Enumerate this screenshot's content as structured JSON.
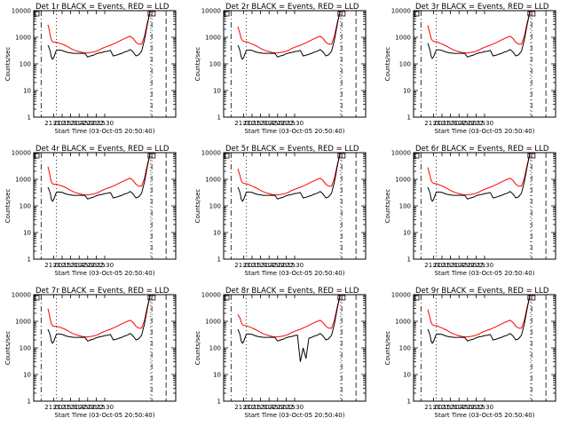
{
  "chart_data": {
    "type": "line",
    "scale": "log",
    "xlabel": "Start Time (03-Oct-05 20:50:40)",
    "ylabel": "Counts/sec",
    "ylim": [
      1,
      10000
    ],
    "xlim_minutes": [
      -25,
      225
    ],
    "x_ticks": [
      "21:00",
      "21:15",
      "21:30",
      "21:45",
      "22:00",
      "22:15",
      "22:30"
    ],
    "y_ticks": [
      "1",
      "10",
      "100",
      "1000",
      "10000"
    ],
    "colors": {
      "events": "#000000",
      "lld": "#ff0000",
      "axes": "#000000",
      "background": "#ffffff"
    },
    "legend_note": "BLACK = Events, RED = LLD",
    "x_minutes": [
      0,
      2,
      4,
      6,
      8,
      10,
      15,
      20,
      25,
      30,
      35,
      40,
      45,
      50,
      55,
      60,
      65,
      70,
      75,
      80,
      85,
      90,
      95,
      100,
      105,
      110,
      115,
      120,
      125,
      130,
      135,
      140,
      145,
      150,
      155,
      160,
      165,
      170,
      175,
      180,
      185,
      190,
      195,
      200,
      205,
      210,
      215,
      220
    ],
    "panels": [
      {
        "title": "Det 1r BLACK = Events, RED = LLD",
        "events": [
          500,
          400,
          300,
          180,
          150,
          170,
          330,
          330,
          320,
          290,
          270,
          260,
          250,
          250,
          250,
          250,
          250,
          180,
          200,
          210,
          240,
          260,
          270,
          290,
          300,
          320,
          200,
          210,
          230,
          250,
          280,
          300,
          350,
          280,
          200,
          220,
          300,
          800,
          3000,
          10000,
          10000,
          10000,
          10000,
          10000,
          10000,
          10000,
          10000,
          10000
        ],
        "lld": [
          3000,
          2000,
          1200,
          800,
          700,
          650,
          650,
          600,
          560,
          500,
          440,
          380,
          340,
          310,
          290,
          270,
          260,
          260,
          270,
          280,
          300,
          330,
          380,
          420,
          460,
          500,
          560,
          620,
          700,
          800,
          900,
          1000,
          1100,
          900,
          650,
          550,
          550,
          1100,
          3500,
          9000,
          10000,
          10000,
          10000,
          10000,
          10000,
          10000,
          10000,
          10000
        ]
      },
      {
        "title": "Det 2r BLACK = Events, RED = LLD",
        "events": [
          500,
          400,
          300,
          180,
          150,
          170,
          330,
          330,
          320,
          290,
          270,
          260,
          250,
          250,
          250,
          250,
          250,
          180,
          200,
          210,
          240,
          260,
          270,
          290,
          300,
          320,
          200,
          210,
          230,
          250,
          280,
          300,
          350,
          280,
          200,
          220,
          300,
          800,
          3000,
          10000,
          10000,
          10000,
          10000,
          10000,
          10000,
          10000,
          10000,
          10000
        ],
        "lld": [
          2500,
          1800,
          1300,
          900,
          760,
          700,
          680,
          620,
          560,
          500,
          440,
          380,
          340,
          310,
          290,
          270,
          260,
          260,
          270,
          280,
          300,
          330,
          380,
          420,
          460,
          500,
          560,
          620,
          700,
          800,
          900,
          1000,
          1100,
          900,
          650,
          550,
          550,
          1100,
          3500,
          9000,
          10000,
          10000,
          10000,
          10000,
          10000,
          10000,
          10000,
          10000
        ]
      },
      {
        "title": "Det 3r BLACK = Events, RED = LLD",
        "events": [
          600,
          450,
          320,
          190,
          160,
          180,
          340,
          340,
          320,
          290,
          270,
          260,
          250,
          250,
          250,
          250,
          250,
          180,
          200,
          210,
          240,
          260,
          270,
          290,
          300,
          320,
          200,
          210,
          230,
          250,
          280,
          300,
          350,
          280,
          200,
          220,
          300,
          800,
          3000,
          10000,
          10000,
          10000,
          10000,
          10000,
          10000,
          10000,
          10000,
          10000
        ],
        "lld": [
          2800,
          1900,
          1300,
          900,
          760,
          700,
          680,
          620,
          560,
          500,
          440,
          380,
          340,
          310,
          290,
          270,
          260,
          260,
          270,
          280,
          300,
          330,
          380,
          420,
          460,
          500,
          560,
          620,
          700,
          800,
          900,
          1000,
          1100,
          900,
          650,
          550,
          550,
          1100,
          3500,
          9000,
          10000,
          10000,
          10000,
          10000,
          10000,
          10000,
          10000,
          10000
        ]
      },
      {
        "title": "Det 4r BLACK = Events, RED = LLD",
        "events": [
          500,
          400,
          300,
          180,
          150,
          170,
          330,
          330,
          320,
          290,
          270,
          260,
          250,
          250,
          250,
          250,
          250,
          180,
          200,
          210,
          240,
          260,
          270,
          290,
          300,
          320,
          200,
          210,
          230,
          250,
          280,
          300,
          350,
          280,
          200,
          220,
          300,
          800,
          3000,
          10000,
          10000,
          10000,
          10000,
          10000,
          10000,
          10000,
          10000,
          10000
        ],
        "lld": [
          3000,
          2000,
          1200,
          800,
          700,
          650,
          650,
          600,
          560,
          500,
          440,
          380,
          340,
          310,
          290,
          270,
          260,
          260,
          270,
          280,
          300,
          330,
          380,
          420,
          460,
          500,
          560,
          620,
          700,
          800,
          900,
          1000,
          1100,
          900,
          650,
          550,
          550,
          1100,
          3500,
          9000,
          10000,
          10000,
          10000,
          10000,
          10000,
          10000,
          10000,
          10000
        ]
      },
      {
        "title": "Det 5r BLACK = Events, RED = LLD",
        "events": [
          500,
          400,
          300,
          180,
          150,
          170,
          330,
          330,
          320,
          290,
          270,
          260,
          250,
          250,
          250,
          250,
          250,
          180,
          200,
          210,
          240,
          260,
          270,
          290,
          300,
          320,
          200,
          210,
          230,
          250,
          280,
          300,
          350,
          280,
          200,
          220,
          300,
          800,
          3000,
          10000,
          10000,
          10000,
          10000,
          10000,
          10000,
          10000,
          10000,
          10000
        ],
        "lld": [
          2500,
          1800,
          1300,
          900,
          760,
          700,
          680,
          620,
          560,
          500,
          440,
          380,
          340,
          310,
          290,
          270,
          260,
          260,
          270,
          280,
          300,
          330,
          380,
          420,
          460,
          500,
          560,
          620,
          700,
          800,
          900,
          1000,
          1100,
          900,
          650,
          550,
          550,
          1100,
          3500,
          9000,
          10000,
          10000,
          10000,
          10000,
          10000,
          10000,
          10000,
          10000
        ]
      },
      {
        "title": "Det 6r BLACK = Events, RED = LLD",
        "events": [
          500,
          400,
          300,
          180,
          150,
          170,
          330,
          330,
          320,
          290,
          270,
          260,
          250,
          250,
          250,
          250,
          250,
          180,
          200,
          210,
          240,
          260,
          270,
          290,
          300,
          320,
          200,
          210,
          230,
          250,
          280,
          300,
          350,
          280,
          200,
          220,
          300,
          800,
          3000,
          10000,
          10000,
          10000,
          10000,
          10000,
          10000,
          10000,
          10000,
          10000
        ],
        "lld": [
          2800,
          1900,
          1300,
          900,
          760,
          700,
          680,
          620,
          560,
          500,
          440,
          380,
          340,
          310,
          290,
          270,
          260,
          260,
          270,
          280,
          300,
          330,
          380,
          420,
          460,
          500,
          560,
          620,
          700,
          800,
          900,
          1000,
          1100,
          900,
          650,
          550,
          550,
          1100,
          3500,
          9000,
          10000,
          10000,
          10000,
          10000,
          10000,
          10000,
          10000,
          10000
        ]
      },
      {
        "title": "Det 7r BLACK = Events, RED = LLD",
        "events": [
          500,
          400,
          300,
          180,
          150,
          170,
          330,
          330,
          320,
          290,
          270,
          260,
          250,
          250,
          250,
          250,
          250,
          180,
          200,
          210,
          240,
          260,
          270,
          290,
          300,
          320,
          200,
          210,
          230,
          250,
          280,
          300,
          350,
          280,
          200,
          220,
          300,
          800,
          3000,
          10000,
          10000,
          10000,
          10000,
          10000,
          10000,
          10000,
          10000,
          10000
        ],
        "lld": [
          3000,
          2000,
          1200,
          800,
          700,
          650,
          650,
          600,
          560,
          500,
          440,
          380,
          340,
          310,
          290,
          270,
          260,
          260,
          270,
          280,
          300,
          330,
          380,
          420,
          460,
          500,
          560,
          620,
          700,
          800,
          900,
          1000,
          1100,
          900,
          650,
          550,
          550,
          1100,
          3500,
          9000,
          10000,
          10000,
          10000,
          10000,
          10000,
          10000,
          10000,
          10000
        ]
      },
      {
        "title": "Det 8r BLACK = Events, RED = LLD",
        "events": [
          500,
          400,
          300,
          180,
          150,
          170,
          330,
          330,
          320,
          290,
          270,
          260,
          250,
          250,
          250,
          250,
          250,
          180,
          200,
          210,
          240,
          260,
          270,
          290,
          300,
          30,
          100,
          40,
          230,
          250,
          280,
          300,
          350,
          280,
          200,
          220,
          300,
          800,
          3000,
          10000,
          10000,
          10000,
          10000,
          10000,
          10000,
          10000,
          10000,
          10000
        ],
        "lld": [
          1800,
          1500,
          1300,
          900,
          760,
          700,
          680,
          620,
          560,
          500,
          440,
          380,
          340,
          310,
          290,
          270,
          260,
          260,
          270,
          280,
          300,
          330,
          380,
          420,
          460,
          500,
          560,
          620,
          700,
          800,
          900,
          1000,
          1100,
          900,
          650,
          550,
          550,
          1100,
          3500,
          9000,
          10000,
          10000,
          10000,
          10000,
          10000,
          10000,
          10000,
          10000
        ]
      },
      {
        "title": "Det 9r BLACK = Events, RED = LLD",
        "events": [
          500,
          400,
          300,
          180,
          150,
          170,
          330,
          330,
          320,
          290,
          270,
          260,
          250,
          250,
          250,
          250,
          250,
          180,
          200,
          210,
          240,
          260,
          270,
          290,
          300,
          320,
          200,
          210,
          230,
          250,
          280,
          300,
          350,
          280,
          200,
          220,
          300,
          800,
          3000,
          10000,
          10000,
          10000,
          10000,
          10000,
          10000,
          10000,
          10000,
          10000
        ],
        "lld": [
          2800,
          1900,
          1300,
          900,
          760,
          700,
          680,
          620,
          560,
          500,
          440,
          380,
          340,
          310,
          290,
          270,
          260,
          260,
          270,
          280,
          300,
          330,
          380,
          420,
          460,
          500,
          560,
          620,
          700,
          800,
          900,
          1000,
          1100,
          900,
          650,
          550,
          550,
          1100,
          3500,
          9000,
          10000,
          10000,
          10000,
          10000,
          10000,
          10000,
          10000,
          10000
        ]
      }
    ]
  }
}
